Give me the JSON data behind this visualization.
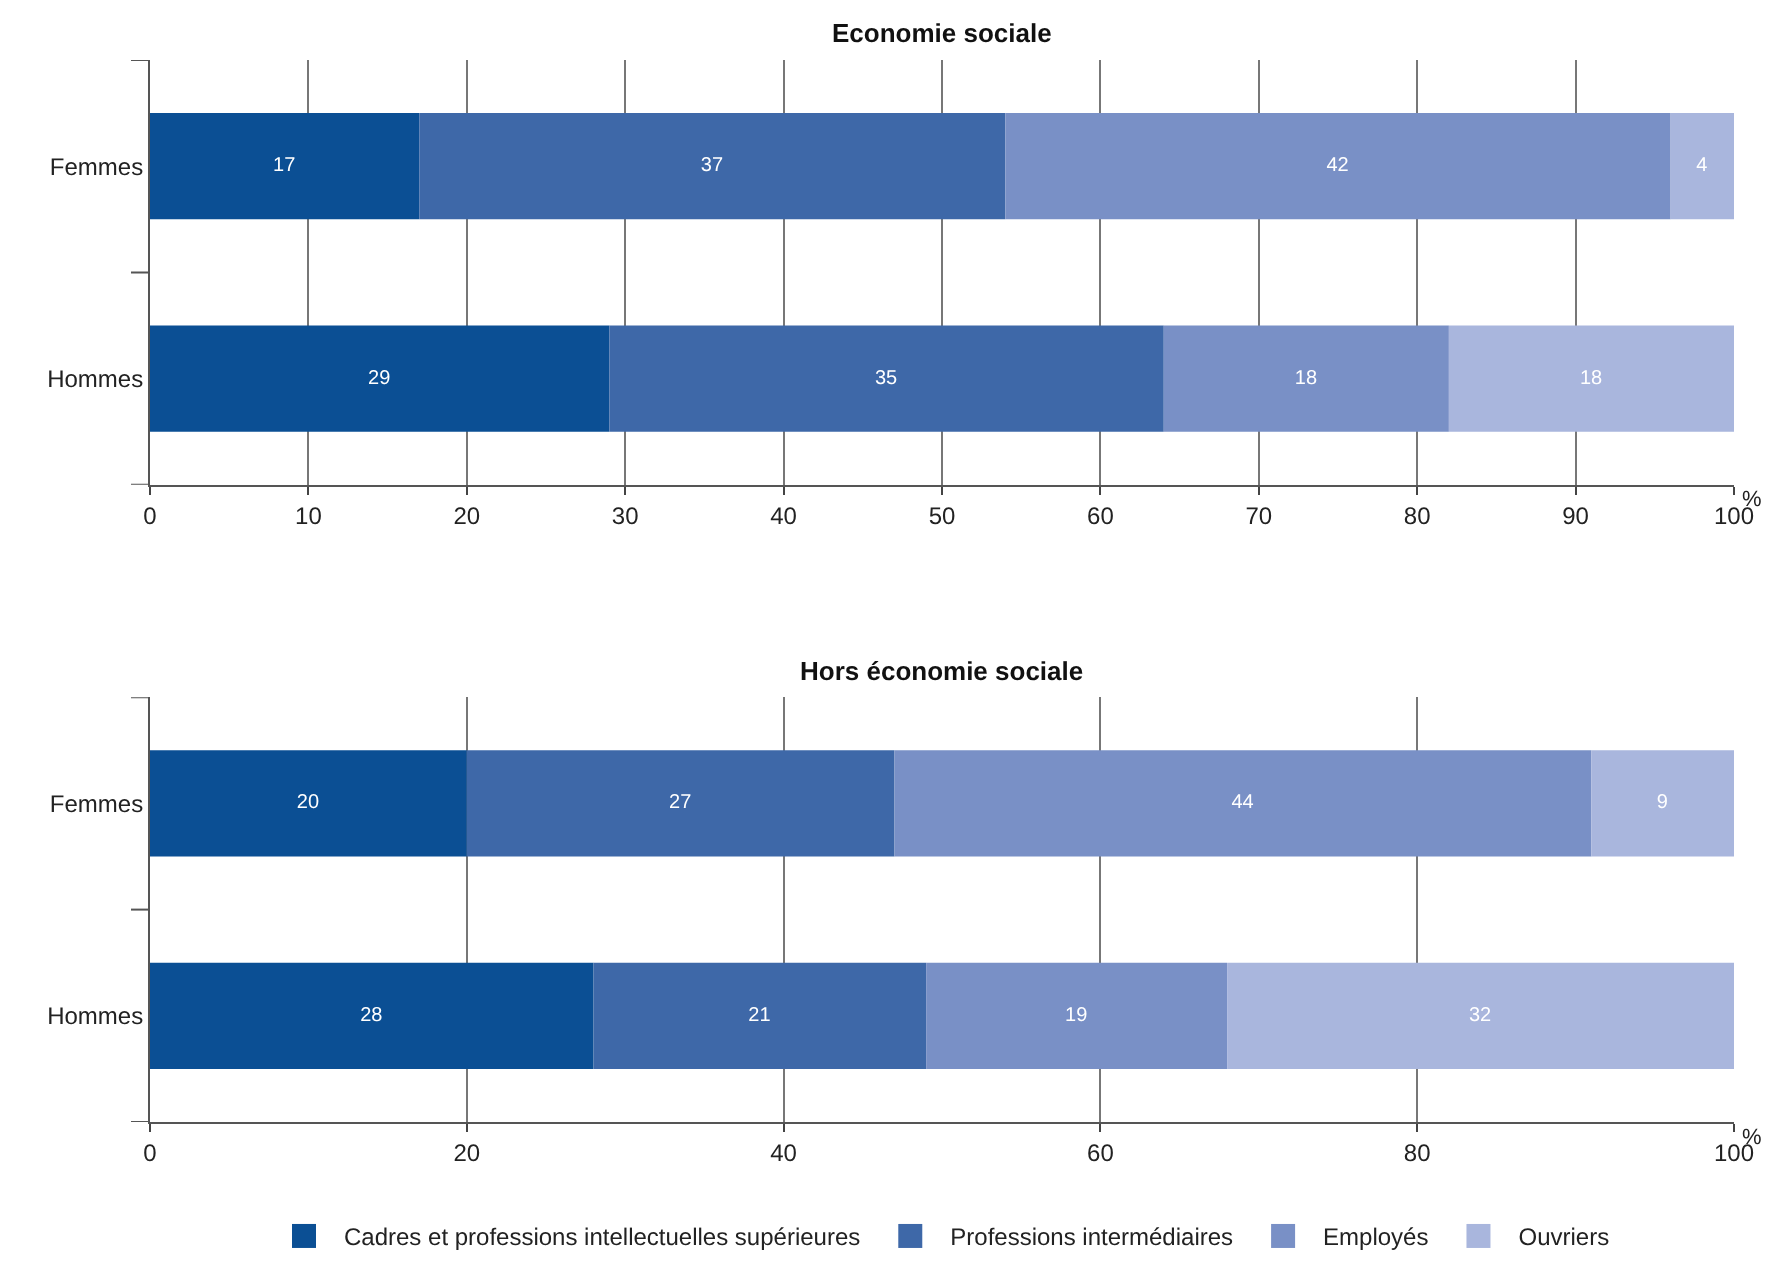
{
  "chart_data": [
    {
      "type": "bar",
      "orientation": "horizontal",
      "stacked": true,
      "title": "Economie sociale",
      "xlabel": "%",
      "categories": [
        "Femmes",
        "Hommes"
      ],
      "xlim": [
        0,
        100
      ],
      "xticks": [
        0,
        10,
        20,
        30,
        40,
        50,
        60,
        70,
        80,
        90,
        100
      ],
      "grid": "x",
      "data_labels": true,
      "series": [
        {
          "color": "#0b4f94",
          "values": [
            17,
            29
          ]
        },
        {
          "color": "#3e68a8",
          "values": [
            37,
            35
          ]
        },
        {
          "color": "#7990c6",
          "values": [
            42,
            18
          ]
        },
        {
          "color": "#a9b6dd",
          "values": [
            4,
            18
          ]
        }
      ]
    },
    {
      "type": "bar",
      "orientation": "horizontal",
      "stacked": true,
      "title": "Hors économie sociale",
      "xlabel": "%",
      "categories": [
        "Femmes",
        "Hommes"
      ],
      "xlim": [
        0,
        100
      ],
      "xticks": [
        0,
        20,
        40,
        60,
        80,
        100
      ],
      "grid": "x",
      "data_labels": true,
      "legend": "bottom",
      "series": [
        {
          "name": "Cadres et professions intellectuelles supérieures",
          "color": "#0b4f94",
          "values": [
            20,
            28
          ]
        },
        {
          "name": "Professions intermédiaires",
          "color": "#3e68a8",
          "values": [
            27,
            21
          ]
        },
        {
          "name": "Employés",
          "color": "#7990c6",
          "values": [
            44,
            19
          ]
        },
        {
          "name": "Ouvriers",
          "color": "#a9b6dd",
          "values": [
            9,
            32
          ]
        }
      ]
    }
  ]
}
